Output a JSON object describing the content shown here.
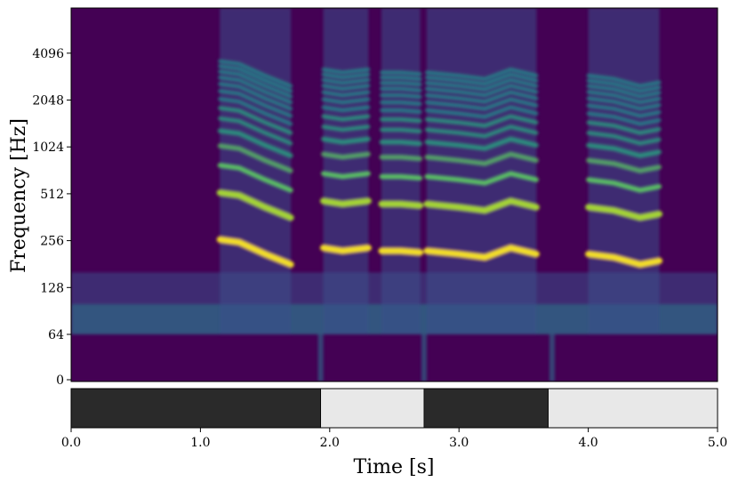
{
  "chart_data": [
    {
      "type": "heatmap",
      "title": "",
      "xlabel": "",
      "ylabel": "Frequency [Hz]",
      "xlim": [
        0.0,
        5.0
      ],
      "y_ticks": [
        "0",
        "64",
        "128",
        "256",
        "512",
        "1024",
        "2048",
        "4096"
      ],
      "y_tick_values": [
        0,
        64,
        128,
        256,
        512,
        1024,
        2048,
        4096
      ],
      "y_scale": "symlog",
      "colormap": "viridis",
      "background_color": "#440154",
      "segments": [
        {
          "t_start": 1.15,
          "t_end": 1.7,
          "formants": [
            [
              1.15,
              260
            ],
            [
              1.3,
              250
            ],
            [
              1.5,
              210
            ],
            [
              1.7,
              180
            ]
          ]
        },
        {
          "t_start": 1.95,
          "t_end": 2.3,
          "formants": [
            [
              1.95,
              230
            ],
            [
              2.1,
              220
            ],
            [
              2.3,
              230
            ]
          ]
        },
        {
          "t_start": 2.4,
          "t_end": 2.7,
          "formants": [
            [
              2.4,
              220
            ],
            [
              2.55,
              220
            ],
            [
              2.7,
              215
            ]
          ]
        },
        {
          "t_start": 2.75,
          "t_end": 3.6,
          "formants": [
            [
              2.75,
              220
            ],
            [
              3.0,
              210
            ],
            [
              3.2,
              200
            ],
            [
              3.4,
              230
            ],
            [
              3.6,
              210
            ]
          ]
        },
        {
          "t_start": 4.0,
          "t_end": 4.55,
          "formants": [
            [
              4.0,
              210
            ],
            [
              4.2,
              200
            ],
            [
              4.4,
              180
            ],
            [
              4.55,
              190
            ]
          ]
        }
      ]
    },
    {
      "type": "bar",
      "xlabel": "Time [s]",
      "xlim": [
        0.0,
        5.0
      ],
      "x_ticks": [
        "0.0",
        "1.0",
        "2.0",
        "3.0",
        "4.0",
        "5.0"
      ],
      "x_tick_values": [
        0.0,
        1.0,
        2.0,
        3.0,
        4.0,
        5.0
      ],
      "segments": [
        {
          "start": 0.0,
          "end": 1.93,
          "state": "dark",
          "color": "#2a2a2a"
        },
        {
          "start": 1.93,
          "end": 2.73,
          "state": "light",
          "color": "#e8e8e8"
        },
        {
          "start": 2.73,
          "end": 3.69,
          "state": "dark",
          "color": "#2a2a2a"
        },
        {
          "start": 3.69,
          "end": 5.0,
          "state": "light",
          "color": "#e8e8e8"
        }
      ]
    }
  ]
}
